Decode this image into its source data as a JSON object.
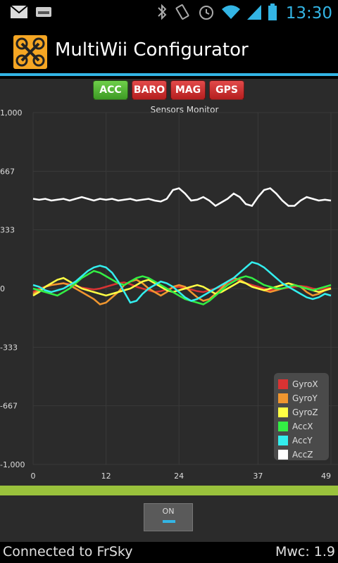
{
  "status_bar": {
    "time": "13:30",
    "icons": [
      "gmail-icon",
      "storage-icon",
      "bluetooth-icon",
      "vibrate-icon",
      "alarm-icon",
      "wifi-icon",
      "signal-icon",
      "battery-icon"
    ]
  },
  "app": {
    "title": "MultiWii Configurator"
  },
  "tabs": [
    {
      "label": "ACC",
      "color": "#4caf2f",
      "active": true
    },
    {
      "label": "BARO",
      "color": "#c62828",
      "active": false
    },
    {
      "label": "MAG",
      "color": "#c62828",
      "active": false
    },
    {
      "label": "GPS",
      "color": "#c62828",
      "active": false
    }
  ],
  "chart_data": {
    "type": "line",
    "title": "Sensors Monitor",
    "xlabel": "",
    "ylabel": "",
    "xlim": [
      0,
      49
    ],
    "ylim": [
      -1000,
      1000
    ],
    "x_tick_labels": [
      "0",
      "12",
      "24",
      "37",
      "49"
    ],
    "y_tick_labels": [
      "1,000",
      "667",
      "333",
      "0",
      "-333",
      "-667",
      "-1,000"
    ],
    "grid": true,
    "legend_position": "bottom-right",
    "series": [
      {
        "name": "GyroX",
        "color": "#d93333",
        "values": [
          -20,
          0,
          10,
          20,
          25,
          30,
          25,
          15,
          5,
          0,
          -5,
          0,
          10,
          20,
          30,
          35,
          25,
          10,
          0,
          -10,
          -20,
          -15,
          -5,
          5,
          10,
          0,
          -5,
          -15,
          -20,
          -10,
          0,
          10,
          30,
          50,
          45,
          30,
          20,
          10,
          0,
          -10,
          -5,
          0,
          5,
          10,
          15,
          10,
          0,
          -5,
          0,
          5
        ]
      },
      {
        "name": "GyroY",
        "color": "#f0962f",
        "values": [
          -30,
          -10,
          10,
          20,
          25,
          30,
          20,
          0,
          -20,
          -40,
          -60,
          -90,
          -80,
          -50,
          -20,
          20,
          40,
          50,
          30,
          0,
          -20,
          -40,
          -20,
          10,
          20,
          10,
          -20,
          -50,
          -70,
          -60,
          -30,
          0,
          40,
          60,
          50,
          30,
          10,
          0,
          -10,
          -20,
          -10,
          0,
          10,
          20,
          10,
          -20,
          -40,
          -30,
          -10,
          0
        ]
      },
      {
        "name": "GyroZ",
        "color": "#ffff44",
        "values": [
          -40,
          -20,
          10,
          30,
          50,
          60,
          40,
          20,
          0,
          -10,
          -20,
          -30,
          -40,
          -30,
          -20,
          -10,
          0,
          20,
          40,
          50,
          30,
          10,
          -10,
          -20,
          -10,
          0,
          10,
          20,
          10,
          -10,
          -30,
          -20,
          0,
          20,
          40,
          30,
          10,
          0,
          -10,
          0,
          10,
          20,
          30,
          20,
          10,
          0,
          -10,
          -20,
          -10,
          0
        ]
      },
      {
        "name": "AccX",
        "color": "#33ee44",
        "values": [
          0,
          -10,
          -20,
          -30,
          -40,
          -20,
          0,
          30,
          60,
          80,
          100,
          90,
          70,
          50,
          30,
          20,
          40,
          60,
          70,
          60,
          40,
          20,
          0,
          -20,
          -40,
          -60,
          -70,
          -80,
          -90,
          -70,
          -40,
          -10,
          20,
          40,
          60,
          70,
          60,
          40,
          20,
          10,
          0,
          0,
          10,
          20,
          10,
          0,
          -10,
          0,
          10,
          20
        ]
      },
      {
        "name": "AccY",
        "color": "#33eeee",
        "values": [
          20,
          10,
          -10,
          -20,
          -10,
          0,
          20,
          40,
          70,
          100,
          120,
          130,
          120,
          90,
          40,
          -20,
          -80,
          -70,
          -30,
          0,
          20,
          40,
          30,
          10,
          -20,
          -50,
          -70,
          -60,
          -40,
          -20,
          0,
          20,
          40,
          60,
          90,
          120,
          150,
          140,
          120,
          90,
          60,
          30,
          10,
          -10,
          -30,
          -50,
          -60,
          -50,
          -30,
          -40
        ]
      },
      {
        "name": "AccZ",
        "color": "#ffffff",
        "values": [
          510,
          505,
          510,
          500,
          505,
          510,
          500,
          510,
          520,
          510,
          500,
          510,
          505,
          510,
          500,
          505,
          510,
          500,
          505,
          510,
          500,
          495,
          510,
          560,
          570,
          540,
          500,
          505,
          520,
          500,
          470,
          490,
          510,
          540,
          520,
          480,
          470,
          520,
          560,
          570,
          540,
          500,
          470,
          470,
          500,
          520,
          510,
          500,
          505,
          500
        ]
      }
    ]
  },
  "toggle": {
    "label": "ON"
  },
  "footer": {
    "connection": "Connected to FrSky",
    "version": "Mwc: 1.9"
  }
}
